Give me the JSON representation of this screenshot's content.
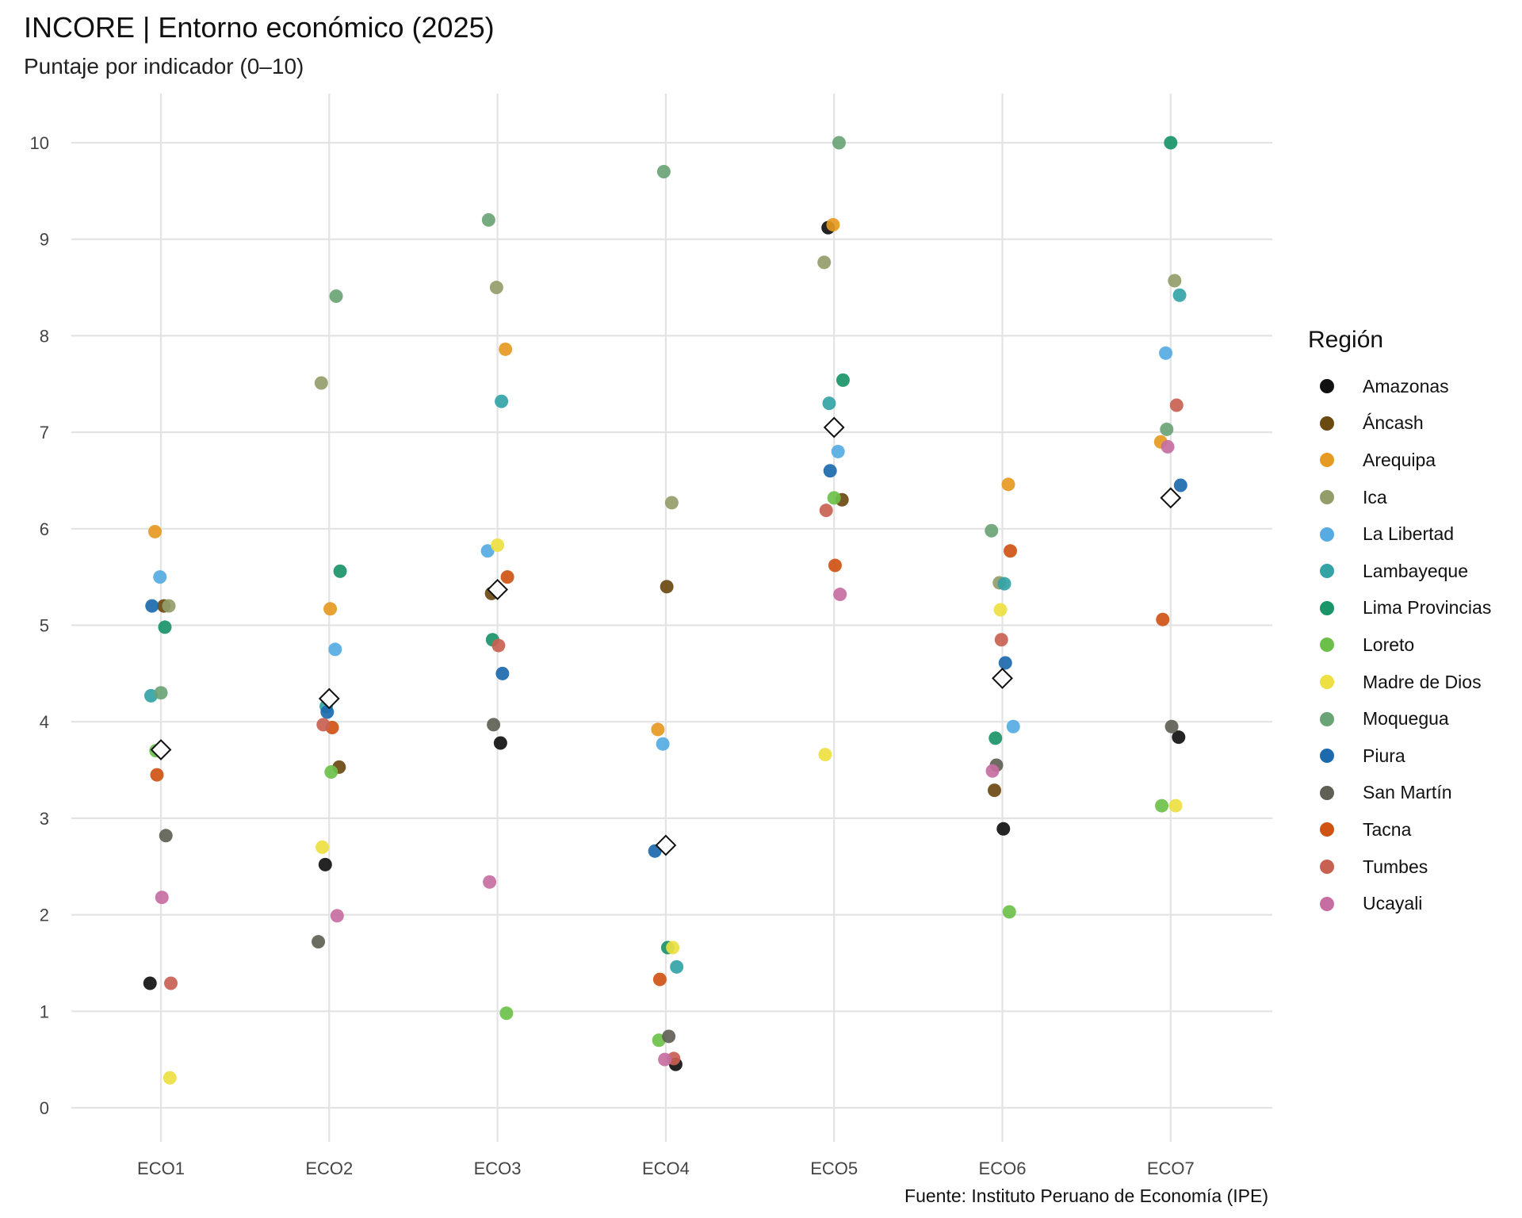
{
  "chart_data": {
    "type": "scatter",
    "title": "INCORE | Entorno económico (2025)",
    "subtitle": "Puntaje por indicador (0–10)",
    "caption": "Fuente: Instituto Peruano de Economía (IPE)",
    "legend_title": "Región",
    "legend_position": "right",
    "grid": true,
    "ylim": [
      0,
      10
    ],
    "yticks": [
      "0",
      "1",
      "2",
      "3",
      "4",
      "5",
      "6",
      "7",
      "8",
      "9",
      "10"
    ],
    "categories": [
      "ECO1",
      "ECO2",
      "ECO3",
      "ECO4",
      "ECO5",
      "ECO6",
      "ECO7"
    ],
    "series": [
      {
        "name": "Amazonas",
        "color": "#111111",
        "values": [
          1.29,
          2.52,
          3.78,
          0.45,
          9.12,
          2.89,
          3.84
        ]
      },
      {
        "name": "Áncash",
        "color": "#6b4a12",
        "values": [
          5.2,
          3.53,
          5.33,
          5.4,
          6.3,
          3.29,
          null
        ]
      },
      {
        "name": "Arequipa",
        "color": "#e69a22",
        "values": [
          5.97,
          5.17,
          7.86,
          3.92,
          9.15,
          6.46,
          6.9
        ]
      },
      {
        "name": "Ica",
        "color": "#939d6a",
        "values": [
          5.2,
          7.51,
          8.5,
          6.27,
          8.76,
          5.44,
          8.57
        ]
      },
      {
        "name": "La Libertad",
        "color": "#56abe3",
        "values": [
          5.5,
          4.75,
          5.77,
          3.77,
          6.8,
          3.95,
          7.82
        ]
      },
      {
        "name": "Lambayeque",
        "color": "#33a3a6",
        "values": [
          4.27,
          4.16,
          7.32,
          1.46,
          7.3,
          5.43,
          8.42
        ]
      },
      {
        "name": "Lima Provincias",
        "color": "#1a9469",
        "values": [
          4.98,
          5.56,
          4.85,
          1.66,
          7.54,
          3.83,
          10.0
        ]
      },
      {
        "name": "Loreto",
        "color": "#6cc04a",
        "values": [
          3.7,
          3.48,
          0.98,
          0.7,
          6.32,
          2.03,
          3.13
        ]
      },
      {
        "name": "Madre de Dios",
        "color": "#ede042",
        "values": [
          0.31,
          2.7,
          5.83,
          1.66,
          3.66,
          5.16,
          3.13
        ]
      },
      {
        "name": "Moquegua",
        "color": "#6aa375",
        "values": [
          4.3,
          8.41,
          9.2,
          9.7,
          10.0,
          5.98,
          7.03
        ]
      },
      {
        "name": "Piura",
        "color": "#1c69ad",
        "values": [
          5.2,
          4.1,
          4.5,
          2.66,
          6.6,
          4.61,
          6.45
        ]
      },
      {
        "name": "San Martín",
        "color": "#5f5f55",
        "values": [
          2.82,
          1.72,
          3.97,
          0.74,
          null,
          3.55,
          3.95
        ]
      },
      {
        "name": "Tacna",
        "color": "#cf5313",
        "values": [
          3.45,
          3.94,
          5.5,
          1.33,
          5.62,
          5.77,
          5.06
        ]
      },
      {
        "name": "Tumbes",
        "color": "#c96152",
        "values": [
          1.29,
          3.97,
          4.79,
          0.51,
          6.19,
          4.85,
          7.28
        ]
      },
      {
        "name": "Ucayali",
        "color": "#c66ea1",
        "values": [
          2.18,
          1.99,
          2.34,
          0.5,
          5.32,
          3.49,
          6.85
        ]
      }
    ],
    "means": [
      3.71,
      4.24,
      5.37,
      2.72,
      7.05,
      4.45,
      6.32
    ]
  }
}
